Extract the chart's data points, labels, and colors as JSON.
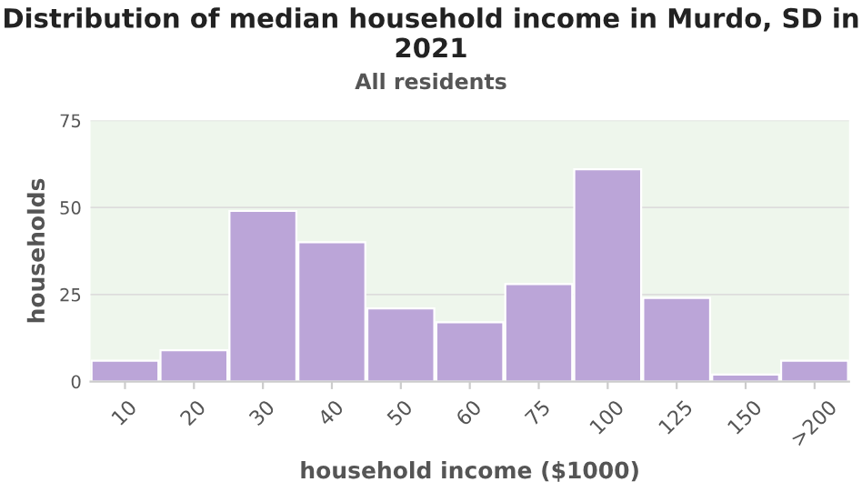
{
  "chart_data": {
    "type": "bar",
    "title": "Distribution of median household income in Murdo, SD in 2021",
    "subtitle": "All residents",
    "xlabel": "household income ($1000)",
    "ylabel": "households",
    "categories": [
      "10",
      "20",
      "30",
      "40",
      "50",
      "60",
      "75",
      "100",
      "125",
      "150",
      ">200"
    ],
    "values": [
      6,
      9,
      49,
      40,
      21,
      17,
      28,
      61,
      24,
      2,
      6
    ],
    "color": "#bba5d8",
    "ylim": [
      0,
      75
    ],
    "yticks": [
      0,
      25,
      50,
      75
    ],
    "grid": "y"
  }
}
